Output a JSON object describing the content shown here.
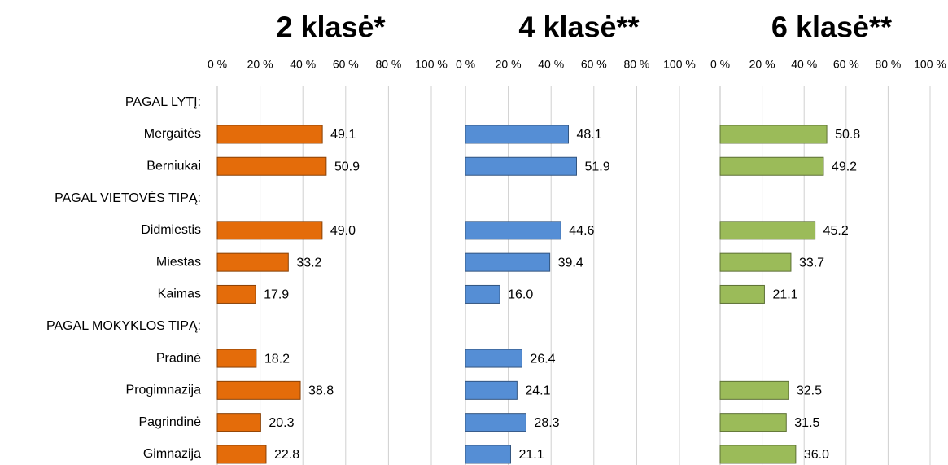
{
  "chart_data": {
    "type": "bar",
    "orientation": "horizontal",
    "categories": [
      "PAGAL LYTĮ:",
      "Mergaitės",
      "Berniukai",
      "PAGAL VIETOVĖS TIPĄ:",
      "Didmiestis",
      "Miestas",
      "Kaimas",
      "PAGAL MOKYKLOS TIPĄ:",
      "Pradinė",
      "Progimnazija",
      "Pagrindinė",
      "Gimnazija"
    ],
    "series": [
      {
        "name": "2 klasė*",
        "color": "#e46c0a",
        "values": [
          null,
          49.1,
          50.9,
          null,
          49.0,
          33.2,
          17.9,
          null,
          18.2,
          38.8,
          20.3,
          22.8
        ],
        "value_labels": [
          null,
          "49.1",
          "50.9",
          null,
          "49.0",
          "33.2",
          "17.9",
          null,
          "18.2",
          "38.8",
          "20.3",
          "22.8"
        ]
      },
      {
        "name": "4 klasė**",
        "color": "#558ed5",
        "values": [
          null,
          48.1,
          51.9,
          null,
          44.6,
          39.4,
          16.0,
          null,
          26.4,
          24.1,
          28.3,
          21.1
        ],
        "value_labels": [
          null,
          "48.1",
          "51.9",
          null,
          "44.6",
          "39.4",
          "16.0",
          null,
          "26.4",
          "24.1",
          "28.3",
          "21.1"
        ]
      },
      {
        "name": "6 klasė**",
        "color": "#9bbb59",
        "values": [
          null,
          50.8,
          49.2,
          null,
          45.2,
          33.7,
          21.1,
          null,
          null,
          32.5,
          31.5,
          36.0
        ],
        "value_labels": [
          null,
          "50.8",
          "49.2",
          null,
          "45.2",
          "33.7",
          "21.1",
          null,
          null,
          "32.5",
          "31.5",
          "36.0"
        ]
      }
    ],
    "xlim": [
      0,
      100
    ],
    "xticks": [
      {
        "value": 0,
        "label": "0 %"
      },
      {
        "value": 20,
        "label": "20 %"
      },
      {
        "value": 40,
        "label": "40 %"
      },
      {
        "value": 60,
        "label": "60 %"
      },
      {
        "value": 80,
        "label": "80 %"
      },
      {
        "value": 100,
        "label": "100 %"
      }
    ],
    "grid": true
  }
}
